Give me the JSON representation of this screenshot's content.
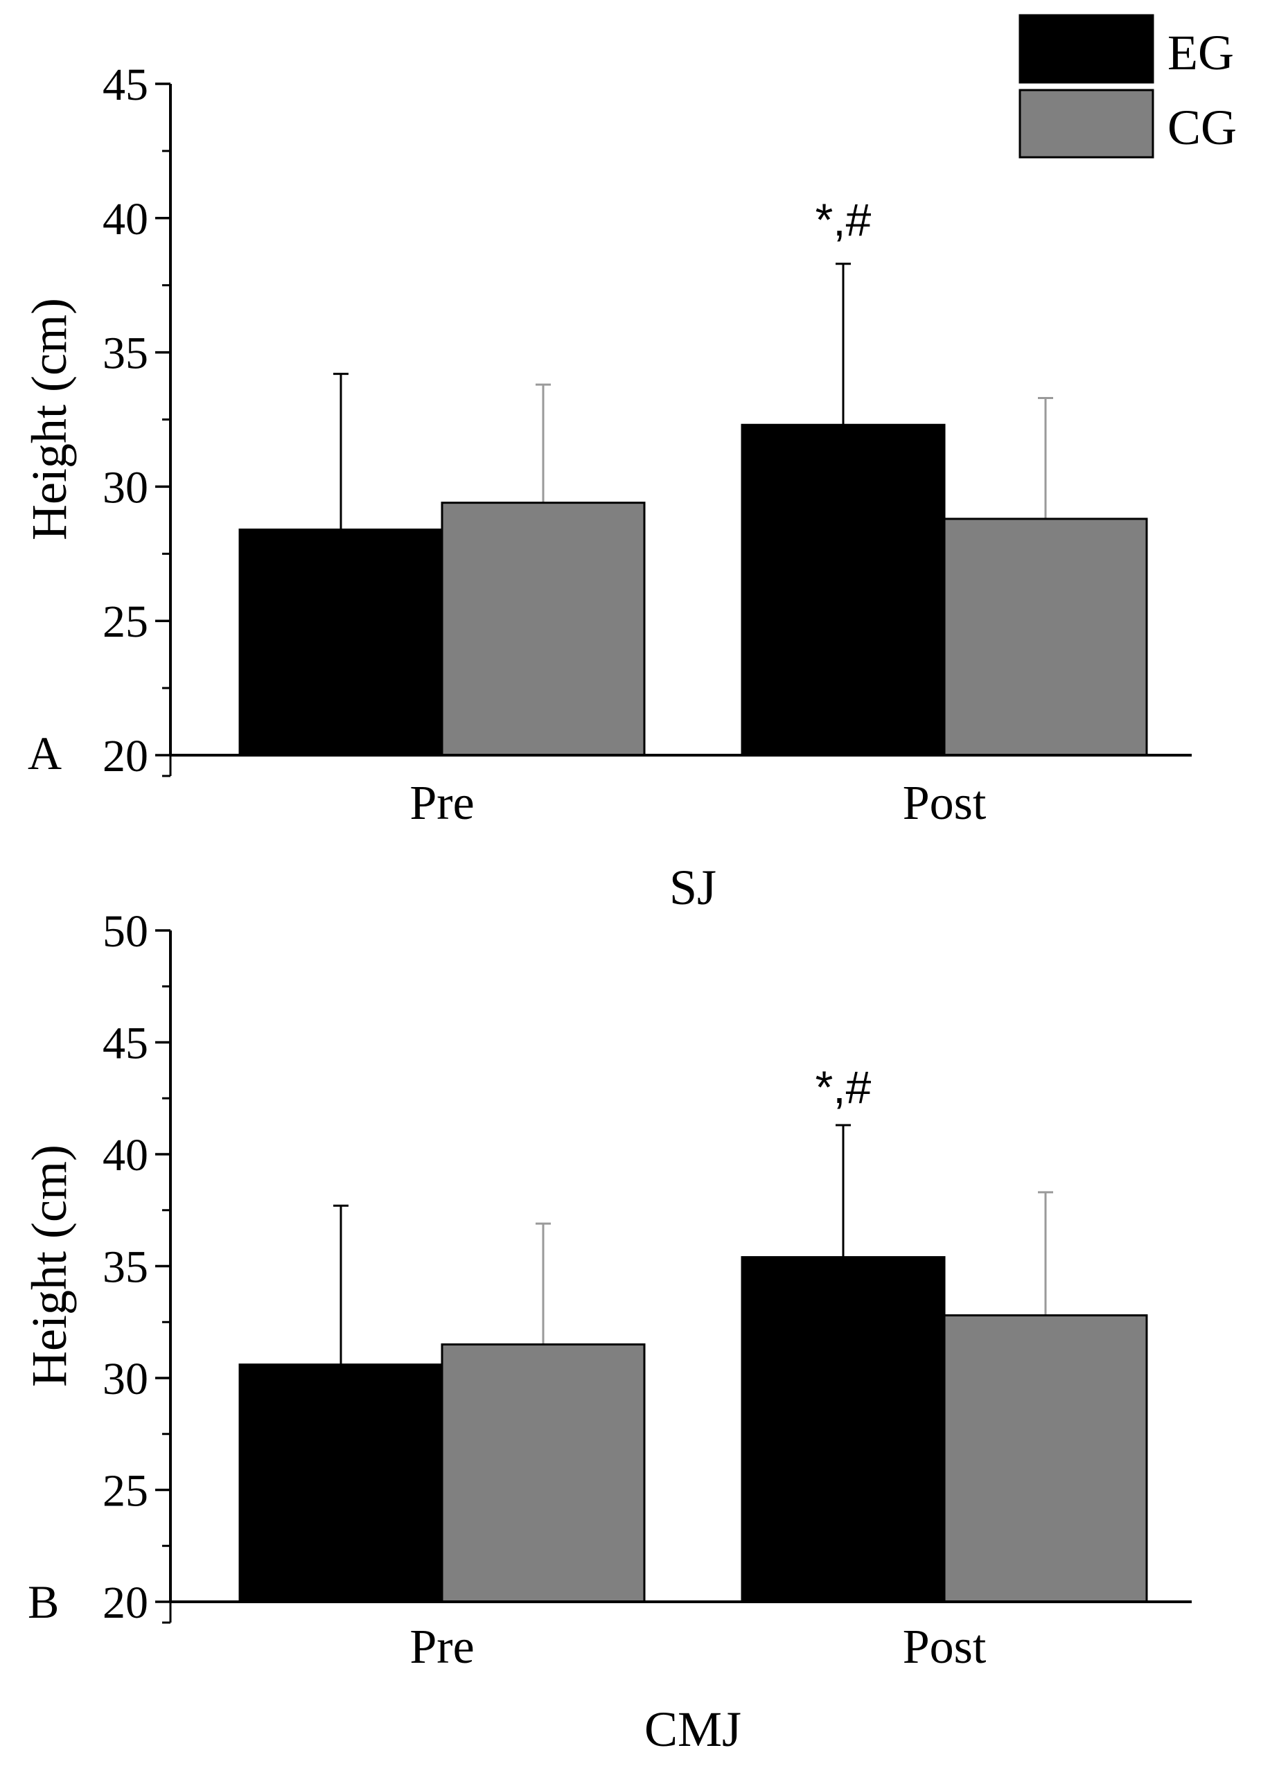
{
  "legend": {
    "items": [
      {
        "label": "EG",
        "color": "#000000"
      },
      {
        "label": "CG",
        "color": "#808080"
      }
    ]
  },
  "chart_data": [
    {
      "type": "bar",
      "panel_label": "A",
      "title": "SJ",
      "xlabel": "SJ",
      "ylabel": "Height (cm)",
      "categories": [
        "Pre",
        "Post"
      ],
      "ylim": [
        20,
        45
      ],
      "yticks": [
        20,
        25,
        30,
        35,
        40,
        45
      ],
      "series": [
        {
          "name": "EG",
          "color": "#000000",
          "values": [
            28.4,
            32.3
          ],
          "errors": [
            5.8,
            6.0
          ]
        },
        {
          "name": "CG",
          "color": "#808080",
          "values": [
            29.4,
            28.8
          ],
          "errors": [
            4.4,
            4.5
          ]
        }
      ],
      "annotations": [
        {
          "text": "*,#",
          "category": "Post",
          "series": "EG"
        }
      ]
    },
    {
      "type": "bar",
      "panel_label": "B",
      "title": "CMJ",
      "xlabel": "CMJ",
      "ylabel": "Height (cm)",
      "categories": [
        "Pre",
        "Post"
      ],
      "ylim": [
        20,
        50
      ],
      "yticks": [
        20,
        25,
        30,
        35,
        40,
        45,
        50
      ],
      "series": [
        {
          "name": "EG",
          "color": "#000000",
          "values": [
            30.6,
            35.4
          ],
          "errors": [
            7.1,
            5.9
          ]
        },
        {
          "name": "CG",
          "color": "#808080",
          "values": [
            31.5,
            32.8
          ],
          "errors": [
            5.4,
            5.5
          ]
        }
      ],
      "annotations": [
        {
          "text": "*,#",
          "category": "Post",
          "series": "EG"
        }
      ]
    }
  ]
}
